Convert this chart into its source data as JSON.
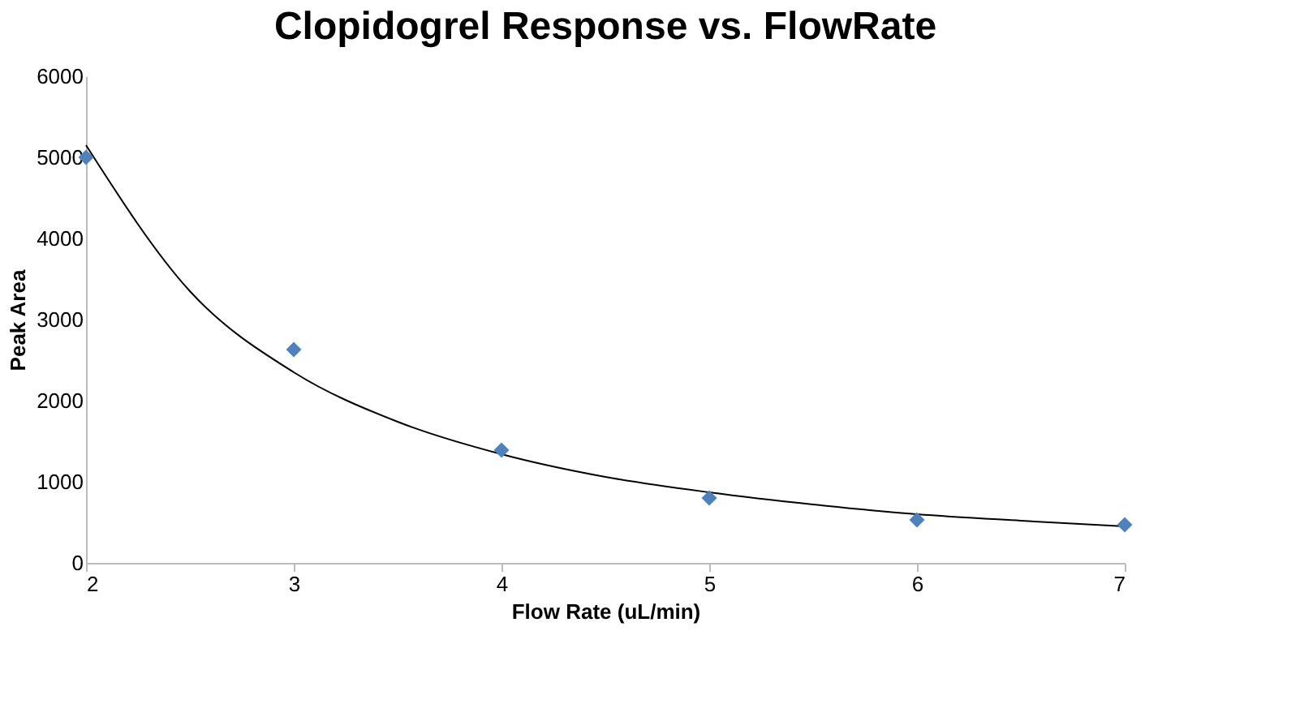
{
  "chart_data": {
    "type": "scatter",
    "title": "Clopidogrel Response vs. FlowRate",
    "xlabel": "Flow Rate (uL/min)",
    "ylabel": "Peak Area",
    "x": [
      2,
      3,
      4,
      5,
      6,
      7
    ],
    "series": [
      {
        "type": "scatter",
        "color": "#4f81bd",
        "marker": "diamond",
        "values": [
          5000,
          2630,
          1390,
          800,
          530,
          470
        ]
      },
      {
        "type": "line",
        "color": "#000000",
        "marker": "none",
        "line_style": "solid",
        "x": [
          2,
          2.5,
          3,
          3.5,
          4,
          4.5,
          5,
          5.5,
          6,
          6.5,
          7
        ],
        "values": [
          5150,
          3350,
          2350,
          1740,
          1340,
          1060,
          870,
          720,
          600,
          520,
          450
        ]
      }
    ],
    "xlim": [
      2,
      7
    ],
    "xticks": [
      2,
      3,
      4,
      5,
      6,
      7
    ],
    "ylim": [
      0,
      6000
    ],
    "yticks": [
      0,
      1000,
      2000,
      3000,
      4000,
      5000,
      6000
    ],
    "grid": false,
    "legend": false
  }
}
